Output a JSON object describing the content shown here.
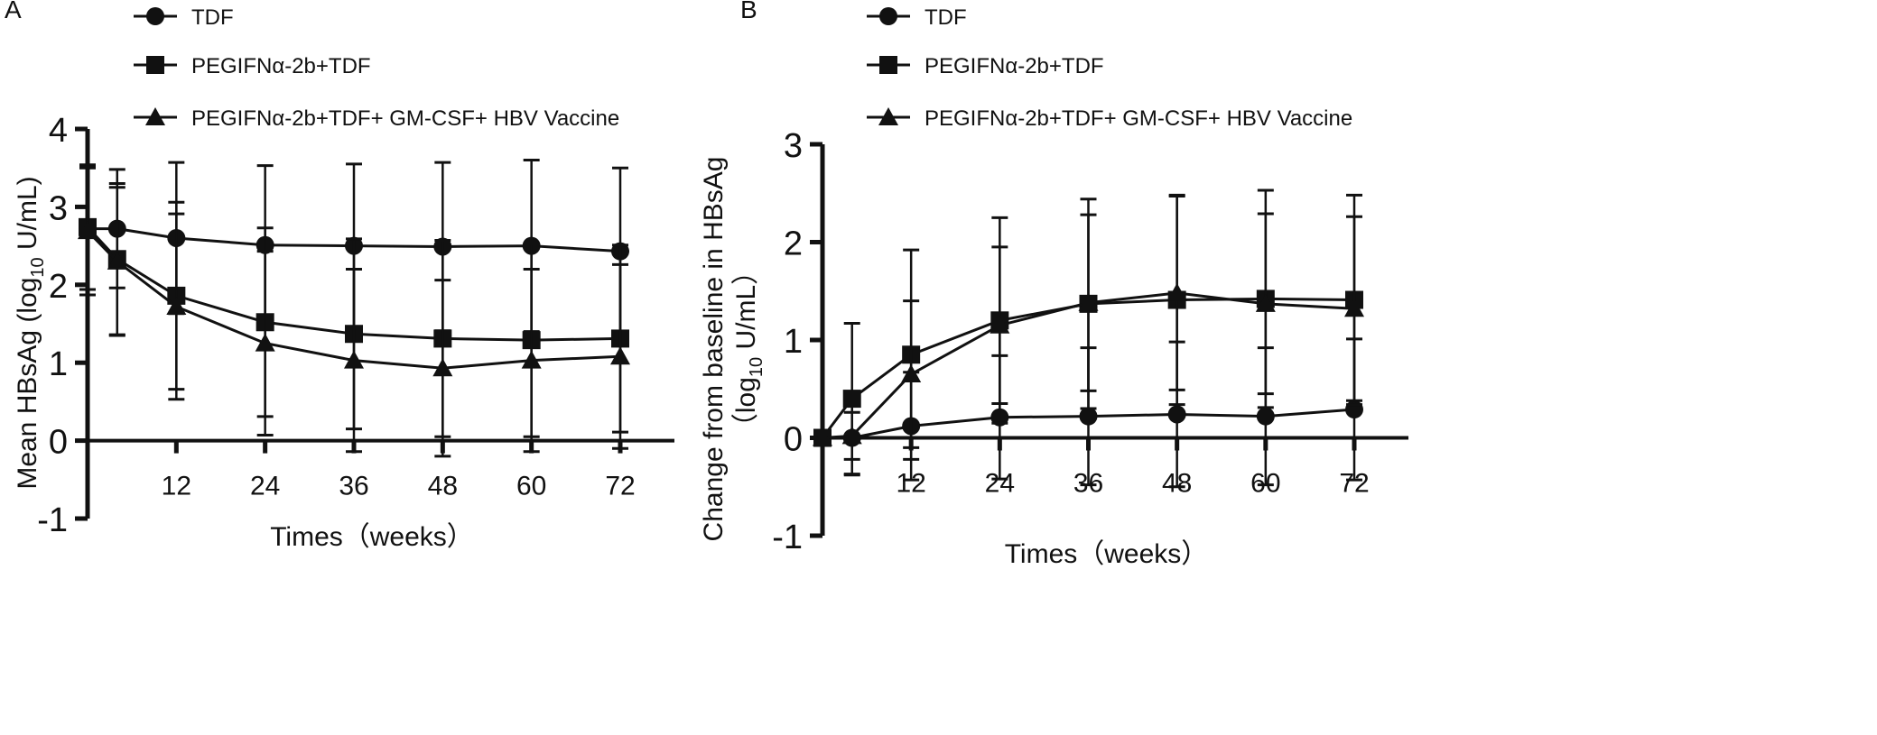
{
  "chart_data": [
    {
      "panel_label": "A",
      "type": "line",
      "xlabel": "Times（weeks）",
      "ylabel": "Mean HBsAg (log",
      "ylabel_sub": "10",
      "ylabel_tail": " U/mL)",
      "xlim": [
        0,
        72
      ],
      "ylim": [
        -1,
        4
      ],
      "xticks": [
        12,
        24,
        36,
        48,
        60,
        72
      ],
      "yticks": [
        -1,
        0,
        1,
        2,
        3,
        4
      ],
      "grid": false,
      "legend_position": "top",
      "x": [
        0,
        4,
        12,
        24,
        36,
        48,
        60,
        72
      ],
      "series": [
        {
          "name": "TDF",
          "marker": "circle",
          "values": [
            2.72,
            2.72,
            2.6,
            2.51,
            2.5,
            2.49,
            2.5,
            2.43
          ],
          "error": [
            0.78,
            0.76,
            0.97,
            1.02,
            1.05,
            1.08,
            1.1,
            1.07
          ]
        },
        {
          "name": "PEGIFNα-2b+TDF",
          "marker": "square",
          "values": [
            2.74,
            2.33,
            1.86,
            1.52,
            1.37,
            1.31,
            1.29,
            1.31
          ],
          "error": [
            0.8,
            0.97,
            1.2,
            1.21,
            1.22,
            1.26,
            1.24,
            1.2
          ]
        },
        {
          "name": "PEGIFNα-2b+TDF+ GM-CSF+ HBV Vaccine",
          "marker": "triangle",
          "values": [
            2.69,
            2.3,
            1.72,
            1.25,
            1.03,
            0.93,
            1.03,
            1.08
          ],
          "error": [
            0.82,
            0.95,
            1.19,
            1.18,
            1.17,
            1.13,
            1.17,
            1.18
          ]
        }
      ]
    },
    {
      "panel_label": "B",
      "type": "line",
      "xlabel": "Times（weeks）",
      "ylabel": "Change from baseline in HBsAg",
      "ylabel2": "（log",
      "ylabel2_sub": "10",
      "ylabel2_tail": " U/mL）",
      "xlim": [
        0,
        72
      ],
      "ylim": [
        -1,
        3
      ],
      "xticks": [
        12,
        24,
        36,
        48,
        60,
        72
      ],
      "yticks": [
        -1,
        0,
        1,
        2,
        3
      ],
      "grid": false,
      "legend_position": "top",
      "x": [
        0,
        4,
        12,
        24,
        36,
        48,
        60,
        72
      ],
      "series": [
        {
          "name": "TDF",
          "marker": "circle",
          "values": [
            0,
            0,
            0.12,
            0.21,
            0.22,
            0.24,
            0.22,
            0.29
          ],
          "error": [
            0,
            0.38,
            0.55,
            0.63,
            0.7,
            0.74,
            0.7,
            0.72
          ]
        },
        {
          "name": "PEGIFNα-2b+TDF",
          "marker": "square",
          "values": [
            0,
            0.4,
            0.85,
            1.2,
            1.37,
            1.41,
            1.42,
            1.41
          ],
          "error": [
            0,
            0.77,
            1.07,
            1.05,
            1.07,
            1.07,
            1.11,
            1.07
          ]
        },
        {
          "name": "PEGIFNα-2b+TDF+ GM-CSF+ HBV Vaccine",
          "marker": "triangle",
          "values": [
            0,
            0.02,
            0.65,
            1.15,
            1.38,
            1.48,
            1.37,
            1.32
          ],
          "error": [
            0,
            0.24,
            0.75,
            0.8,
            0.9,
            0.99,
            0.92,
            0.94
          ]
        }
      ]
    }
  ]
}
